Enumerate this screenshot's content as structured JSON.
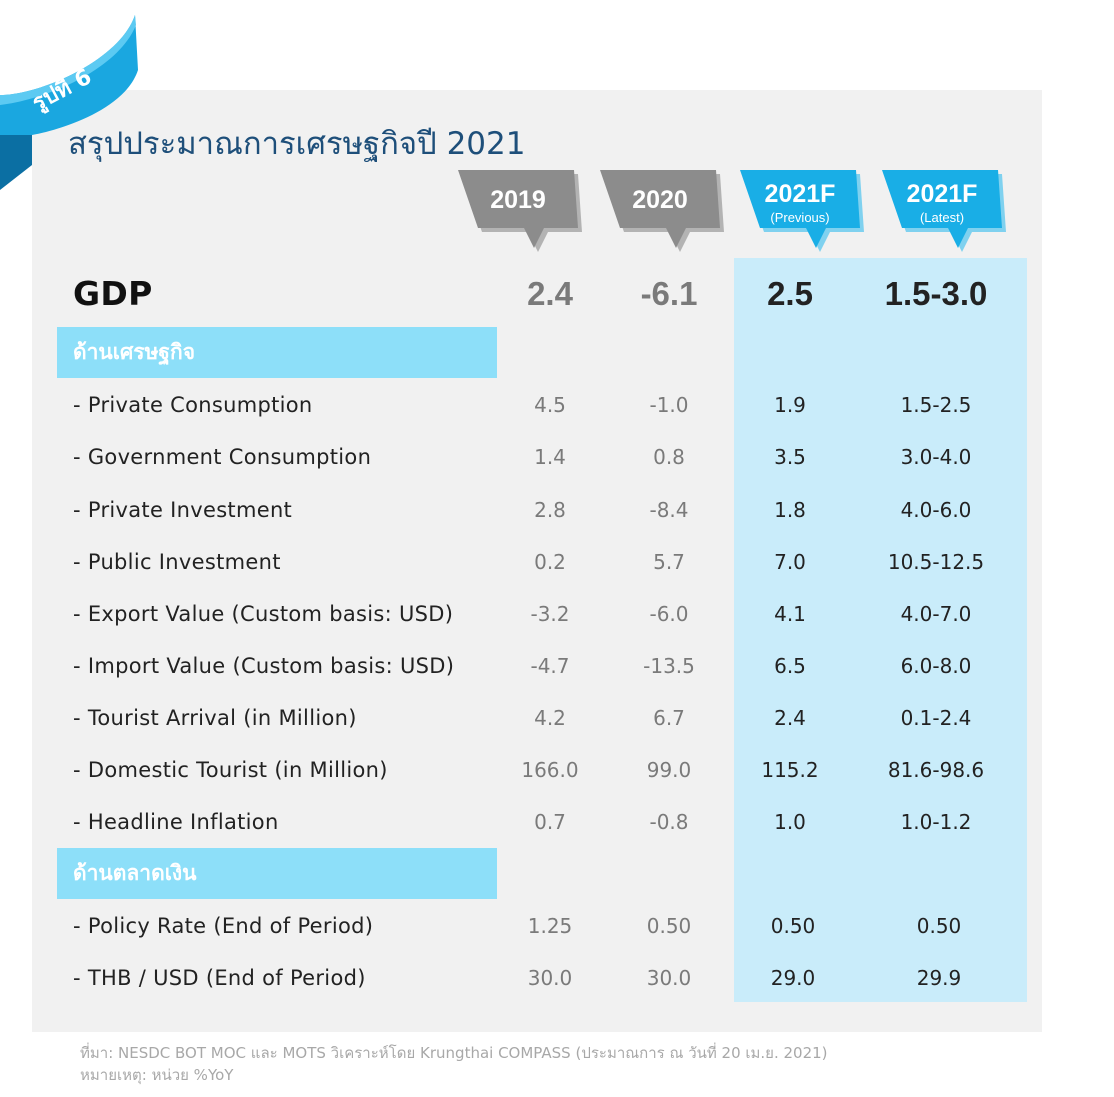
{
  "figure_label": "รูปที่ 6",
  "title": "สรุปประมาณการเศรษฐกิจปี 2021",
  "columns": [
    {
      "year": "2019",
      "sub": ""
    },
    {
      "year": "2020",
      "sub": ""
    },
    {
      "year": "2021F",
      "sub": "(Previous)"
    },
    {
      "year": "2021F",
      "sub": "(Latest)"
    }
  ],
  "gdp": {
    "label": "GDP",
    "values": [
      "2.4",
      "-6.1",
      "2.5",
      "1.5-3.0"
    ]
  },
  "section_economy": "ด้านเศรษฐกิจ",
  "economy_rows": [
    {
      "label": "- Private Consumption",
      "values": [
        "4.5",
        "-1.0",
        "1.9",
        "1.5-2.5"
      ]
    },
    {
      "label": "- Government Consumption",
      "values": [
        "1.4",
        "0.8",
        "3.5",
        "3.0-4.0"
      ]
    },
    {
      "label": "- Private Investment",
      "values": [
        "2.8",
        "-8.4",
        "1.8",
        "4.0-6.0"
      ]
    },
    {
      "label": "- Public Investment",
      "values": [
        "0.2",
        "5.7",
        "7.0",
        "10.5-12.5"
      ]
    },
    {
      "label": "- Export Value (Custom basis: USD)",
      "values": [
        "-3.2",
        "-6.0",
        "4.1",
        "4.0-7.0"
      ]
    },
    {
      "label": "- Import Value (Custom basis: USD)",
      "values": [
        "-4.7",
        "-13.5",
        "6.5",
        "6.0-8.0"
      ]
    },
    {
      "label": "- Tourist Arrival (in Million)",
      "values": [
        "4.2",
        "6.7",
        "2.4",
        "0.1-2.4"
      ]
    },
    {
      "label": "- Domestic Tourist (in Million)",
      "values": [
        "166.0",
        "99.0",
        "115.2",
        "81.6-98.6"
      ]
    },
    {
      "label": "- Headline Inflation",
      "values": [
        "0.7",
        "-0.8",
        "1.0",
        "1.0-1.2"
      ]
    }
  ],
  "section_money": "ด้านตลาดเงิน",
  "money_rows": [
    {
      "label": "- Policy Rate (End of Period)",
      "values": [
        "1.25",
        "0.50",
        "0.50",
        "0.50"
      ]
    },
    {
      "label": "- THB / USD (End of Period)",
      "values": [
        "30.0",
        "30.0",
        "29.0",
        "29.9"
      ]
    }
  ],
  "source": "ที่มา: NESDC BOT MOC และ MOTS วิเคราะห์โดย Krungthai COMPASS  (ประมาณการ ณ วันที่ 20 เม.ย. 2021)",
  "note": "หมายเหตุ: หน่วย %YoY",
  "colors": {
    "ribbon": "#1aa7e0",
    "tag_gray": "#8c8c8c",
    "tag_blue": "#19aee6",
    "section_bg": "#8ddff9",
    "highlight_bg": "#c9ecfa",
    "title": "#1e4f7a"
  }
}
